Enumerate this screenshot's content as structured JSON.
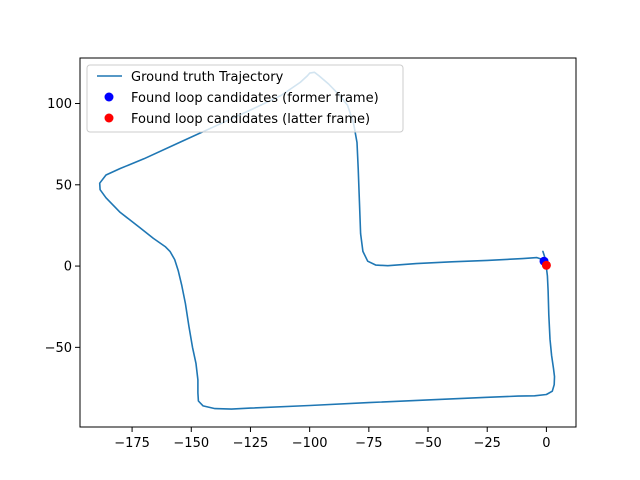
{
  "chart_data": {
    "type": "line",
    "title": "",
    "xlabel": "",
    "ylabel": "",
    "xlim": [
      -197,
      12.5
    ],
    "ylim": [
      -99,
      128
    ],
    "grid": false,
    "legend_placement": "upper-left",
    "x_ticks": [
      -175,
      -150,
      -125,
      -100,
      -75,
      -50,
      -25,
      0
    ],
    "x_tick_labels": [
      "−175",
      "−150",
      "−125",
      "−100",
      "−75",
      "−50",
      "−25",
      "0"
    ],
    "y_ticks": [
      -50,
      0,
      50,
      100
    ],
    "y_tick_labels": [
      "−50",
      "0",
      "50",
      "100"
    ],
    "series": [
      {
        "name": "Ground truth Trajectory",
        "kind": "line",
        "color": "#1f77b4",
        "points": [
          [
            -1.5,
            9
          ],
          [
            -0.8,
            6
          ],
          [
            -0.3,
            2
          ],
          [
            0,
            -1
          ],
          [
            0.4,
            -6
          ],
          [
            0.7,
            -15
          ],
          [
            1.0,
            -30
          ],
          [
            1.5,
            -45
          ],
          [
            2.2,
            -55
          ],
          [
            3.0,
            -63
          ],
          [
            3.4,
            -68
          ],
          [
            3.3,
            -73
          ],
          [
            2.5,
            -77
          ],
          [
            0,
            -79
          ],
          [
            -5,
            -79.8
          ],
          [
            -12,
            -80
          ],
          [
            -25,
            -80.7
          ],
          [
            -50,
            -82.3
          ],
          [
            -75,
            -84
          ],
          [
            -100,
            -85.8
          ],
          [
            -125,
            -87.4
          ],
          [
            -133,
            -88
          ],
          [
            -140,
            -87.7
          ],
          [
            -145,
            -86
          ],
          [
            -147,
            -83
          ],
          [
            -147.2,
            -78
          ],
          [
            -147.2,
            -70
          ],
          [
            -148,
            -60
          ],
          [
            -149.5,
            -50
          ],
          [
            -151,
            -37
          ],
          [
            -152.5,
            -23
          ],
          [
            -154,
            -12
          ],
          [
            -155.5,
            -3
          ],
          [
            -157,
            4
          ],
          [
            -159,
            9
          ],
          [
            -161,
            12
          ],
          [
            -166,
            17
          ],
          [
            -172,
            24
          ],
          [
            -180,
            33
          ],
          [
            -186,
            42
          ],
          [
            -188.5,
            47
          ],
          [
            -188.7,
            51
          ],
          [
            -186,
            56
          ],
          [
            -180,
            60
          ],
          [
            -170,
            66
          ],
          [
            -155,
            76
          ],
          [
            -140,
            86
          ],
          [
            -125,
            96
          ],
          [
            -112,
            105
          ],
          [
            -104,
            113
          ],
          [
            -101,
            117
          ],
          [
            -100,
            118.7
          ],
          [
            -98,
            119.2
          ],
          [
            -96,
            117
          ],
          [
            -92,
            112
          ],
          [
            -88,
            106
          ],
          [
            -84,
            99
          ],
          [
            -81.5,
            88
          ],
          [
            -80,
            76
          ],
          [
            -79.5,
            60
          ],
          [
            -79,
            40
          ],
          [
            -78.5,
            20
          ],
          [
            -77.5,
            9
          ],
          [
            -75.5,
            3
          ],
          [
            -72,
            0.6
          ],
          [
            -67,
            0.2
          ],
          [
            -55,
            1.5
          ],
          [
            -40,
            2.6
          ],
          [
            -25,
            3.5
          ],
          [
            -10,
            4.6
          ],
          [
            -4,
            5.2
          ],
          [
            -1.5,
            4
          ],
          [
            -0.5,
            2
          ]
        ]
      },
      {
        "name": "Found loop candidates (former frame)",
        "kind": "scatter",
        "color": "#0000ff",
        "points": [
          [
            -1,
            3
          ]
        ]
      },
      {
        "name": "Found loop candidates (latter frame)",
        "kind": "scatter",
        "color": "#ff0000",
        "points": [
          [
            0,
            0.5
          ]
        ]
      }
    ]
  }
}
